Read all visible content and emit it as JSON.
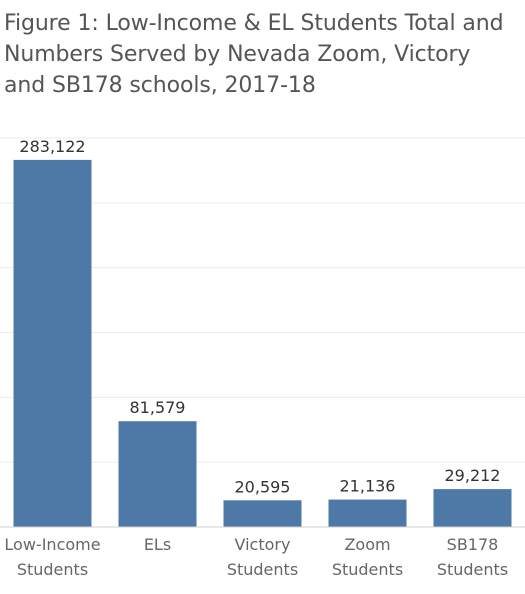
{
  "title_lines": [
    "Figure 1: Low-Income & EL Students Total and",
    "Numbers Served by Nevada Zoom, Victory",
    "and SB178 schools, 2017-18"
  ],
  "chart_data": {
    "type": "bar",
    "title": "Figure 1: Low-Income & EL Students Total and Numbers Served by Nevada Zoom, Victory and SB178 schools, 2017-18",
    "categories": [
      [
        "Low-Income",
        "Students"
      ],
      [
        "ELs"
      ],
      [
        "Victory",
        "Students"
      ],
      [
        "Zoom",
        "Students"
      ],
      [
        "SB178",
        "Students"
      ]
    ],
    "values": [
      283122,
      81579,
      20595,
      21136,
      29212
    ],
    "value_labels": [
      "283,122",
      "81,579",
      "20,595",
      "21,136",
      "29,212"
    ],
    "ylim": [
      0,
      300000
    ],
    "y_gridlines": [
      50000,
      100000,
      150000,
      200000,
      250000,
      300000
    ],
    "grid": true,
    "bar_color": "#4e79a7",
    "grid_color": "#ececec"
  }
}
